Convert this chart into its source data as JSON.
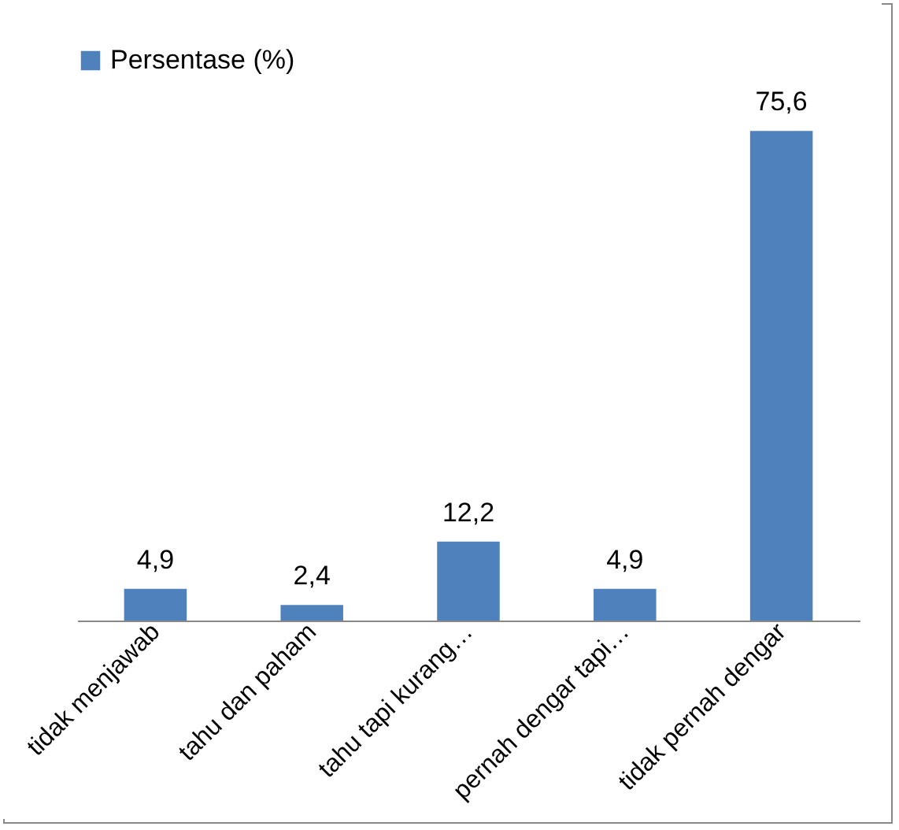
{
  "chart_data": {
    "type": "bar",
    "categories": [
      "tidak menjawab",
      "tahu dan paham",
      "tahu tapi kurang…",
      "pernah dengar tapi…",
      "tidak pernah dengar"
    ],
    "series": [
      {
        "name": "Persentase (%)",
        "color": "#4f81bd",
        "values": [
          4.9,
          2.4,
          12.2,
          4.9,
          75.6
        ],
        "value_labels": [
          "4,9",
          "2,4",
          "12,2",
          "4,9",
          "75,6"
        ]
      }
    ],
    "legend": "top",
    "grid": false
  }
}
